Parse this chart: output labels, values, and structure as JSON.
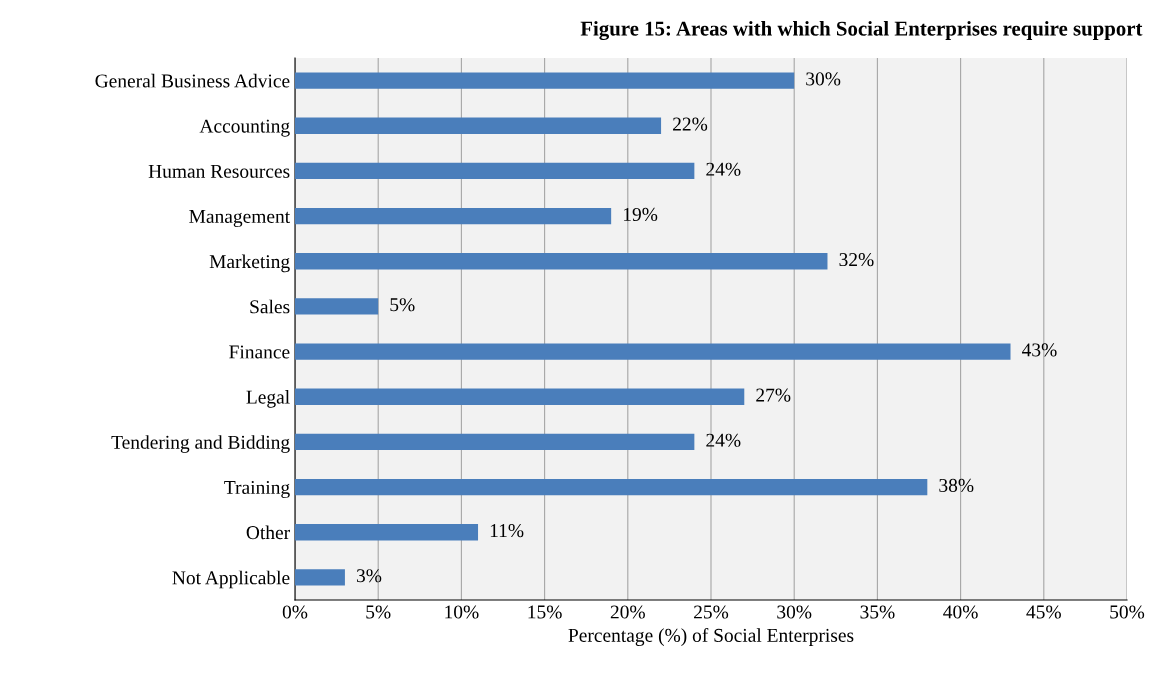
{
  "chart_data": {
    "type": "bar",
    "orientation": "horizontal",
    "title": "Figure 15: Areas with which Social Enterprises require support",
    "xlabel": "Percentage (%) of Social Enterprises",
    "categories": [
      "General Business Advice",
      "Accounting",
      "Human Resources",
      "Management",
      "Marketing",
      "Sales",
      "Finance",
      "Legal",
      "Tendering and Bidding",
      "Training",
      "Other",
      "Not Applicable"
    ],
    "values": [
      30,
      22,
      24,
      19,
      32,
      5,
      43,
      27,
      24,
      38,
      11,
      3
    ],
    "value_labels": [
      "30%",
      "22%",
      "24%",
      "19%",
      "32%",
      "5%",
      "43%",
      "27%",
      "24%",
      "38%",
      "11%",
      "3%"
    ],
    "color": "#4a7ebb",
    "xlim": [
      0,
      50
    ],
    "xticks": [
      {
        "value": 0,
        "label": "0%"
      },
      {
        "value": 5,
        "label": "5%"
      },
      {
        "value": 10,
        "label": "10%"
      },
      {
        "value": 15,
        "label": "15%"
      },
      {
        "value": 20,
        "label": "20%"
      },
      {
        "value": 25,
        "label": "25%"
      },
      {
        "value": 30,
        "label": "30%"
      },
      {
        "value": 35,
        "label": "35%"
      },
      {
        "value": 40,
        "label": "40%"
      },
      {
        "value": 45,
        "label": "45%"
      },
      {
        "value": 50,
        "label": "50%"
      }
    ],
    "grid": "x"
  }
}
